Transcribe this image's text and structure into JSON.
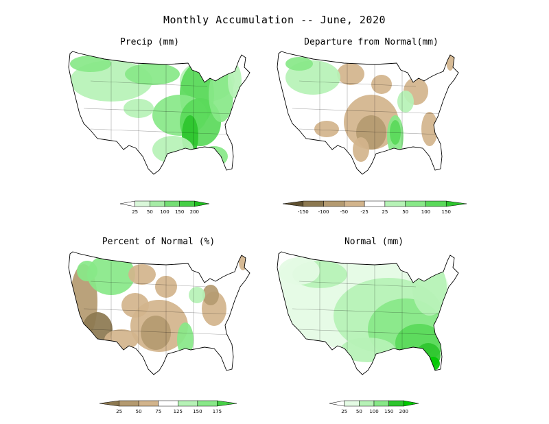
{
  "title": "Monthly Accumulation -- June, 2020",
  "colors": {
    "g1": "#e4fbe4",
    "g2": "#b6f2b6",
    "g3": "#88e888",
    "g4": "#5ad95a",
    "g5": "#2ec52e",
    "g6": "#00c800",
    "b1": "#d2b48c",
    "b2": "#b49a70",
    "b3": "#8c7850",
    "b4": "#5f5030"
  },
  "chart_data": [
    {
      "type": "heatmap",
      "title": "Precip (mm)",
      "units": "mm",
      "colorbar": {
        "ticks": [
          "25",
          "50",
          "100",
          "150",
          "200"
        ],
        "colors": [
          "#ffffff",
          "#d9f7d9",
          "#a6eca6",
          "#74de74",
          "#46cf46",
          "#1fbf1f"
        ]
      }
    },
    {
      "type": "heatmap",
      "title": "Departure from Normal(mm)",
      "units": "mm",
      "colorbar": {
        "ticks": [
          "-150",
          "-100",
          "-50",
          "-25",
          "25",
          "50",
          "100",
          "150"
        ],
        "colors": [
          "#5f5030",
          "#8c7850",
          "#b49a70",
          "#d2b48c",
          "#ffffff",
          "#b6f2b6",
          "#88e888",
          "#5ad95a",
          "#2ec52e"
        ]
      }
    },
    {
      "type": "heatmap",
      "title": "Percent of Normal (%)",
      "units": "%",
      "colorbar": {
        "ticks": [
          "25",
          "50",
          "75",
          "125",
          "150",
          "175"
        ],
        "colors": [
          "#8c7850",
          "#b49a70",
          "#d2b48c",
          "#ffffff",
          "#b6f2b6",
          "#88e888",
          "#46cf46"
        ]
      }
    },
    {
      "type": "heatmap",
      "title": "Normal (mm)",
      "units": "mm",
      "colorbar": {
        "ticks": [
          "25",
          "50",
          "100",
          "150",
          "200"
        ],
        "colors": [
          "#ffffff",
          "#e4fbe4",
          "#b6f2b6",
          "#88e888",
          "#2ec52e",
          "#00c800"
        ]
      }
    }
  ]
}
